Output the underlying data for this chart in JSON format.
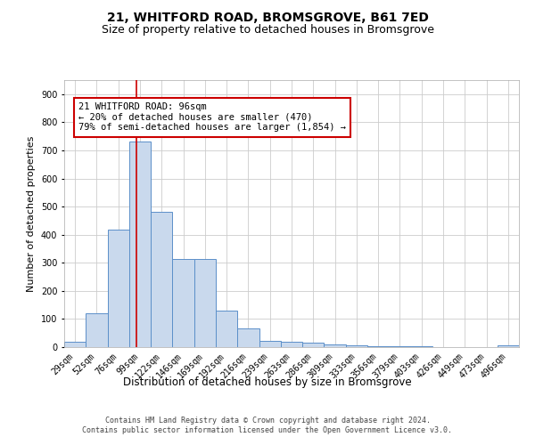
{
  "title": "21, WHITFORD ROAD, BROMSGROVE, B61 7ED",
  "subtitle": "Size of property relative to detached houses in Bromsgrove",
  "xlabel": "Distribution of detached houses by size in Bromsgrove",
  "ylabel": "Number of detached properties",
  "categories": [
    "29sqm",
    "52sqm",
    "76sqm",
    "99sqm",
    "122sqm",
    "146sqm",
    "169sqm",
    "192sqm",
    "216sqm",
    "239sqm",
    "263sqm",
    "286sqm",
    "309sqm",
    "333sqm",
    "356sqm",
    "379sqm",
    "403sqm",
    "426sqm",
    "449sqm",
    "473sqm",
    "496sqm"
  ],
  "values": [
    18,
    120,
    418,
    730,
    480,
    315,
    315,
    130,
    65,
    22,
    20,
    17,
    10,
    5,
    4,
    4,
    3,
    0,
    0,
    0,
    5
  ],
  "bar_color": "#c9d9ed",
  "bar_edge_color": "#5b8fc9",
  "red_line_x": 2.85,
  "annotation_text": "21 WHITFORD ROAD: 96sqm\n← 20% of detached houses are smaller (470)\n79% of semi-detached houses are larger (1,854) →",
  "annotation_box_color": "#ffffff",
  "annotation_box_edge": "#cc0000",
  "ylim": [
    0,
    950
  ],
  "yticks": [
    0,
    100,
    200,
    300,
    400,
    500,
    600,
    700,
    800,
    900
  ],
  "footer1": "Contains HM Land Registry data © Crown copyright and database right 2024.",
  "footer2": "Contains public sector information licensed under the Open Government Licence v3.0.",
  "title_fontsize": 10,
  "subtitle_fontsize": 9,
  "tick_fontsize": 7,
  "ylabel_fontsize": 8,
  "xlabel_fontsize": 8.5,
  "annotation_fontsize": 7.5,
  "footer_fontsize": 6
}
